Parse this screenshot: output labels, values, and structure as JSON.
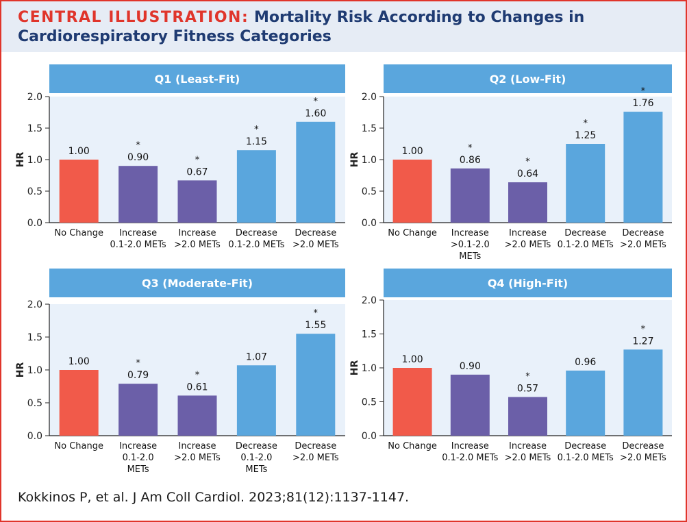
{
  "header": {
    "title_lead": "CENTRAL ILLUSTRATION:",
    "title_rest": "Mortality Risk According to Changes in Cardiorespiratory Fitness Categories"
  },
  "citation": "Kokkinos P, et al. J Am Coll Cardiol. 2023;81(12):1137-1147.",
  "colors": {
    "no_change": "#f15a4a",
    "increase": "#6b5fa8",
    "decrease": "#5aa6dd",
    "header_bar": "#5aa6dd",
    "plot_bg": "#e9f1fa",
    "title_lead": "#e0352b",
    "title": "#1f3b72"
  },
  "chart_data": [
    {
      "type": "bar",
      "title": "Q1 (Least-Fit)",
      "ylabel": "HR",
      "ylim": [
        0,
        2.0
      ],
      "yticks": [
        "0.0",
        "0.5",
        "1.0",
        "1.5",
        "2.0"
      ],
      "categories": [
        [
          "No Change"
        ],
        [
          "Increase",
          "0.1-2.0 METs"
        ],
        [
          "Increase",
          ">2.0 METs"
        ],
        [
          "Decrease",
          "0.1-2.0 METs"
        ],
        [
          "Decrease",
          ">2.0 METs"
        ]
      ],
      "values": [
        1.0,
        0.9,
        0.67,
        1.15,
        1.6
      ],
      "labels": [
        "1.00",
        "0.90",
        "0.67",
        "1.15",
        "1.60"
      ],
      "significant": [
        false,
        true,
        true,
        true,
        true
      ],
      "groups": [
        "no_change",
        "increase",
        "increase",
        "decrease",
        "decrease"
      ]
    },
    {
      "type": "bar",
      "title": "Q2 (Low-Fit)",
      "ylabel": "HR",
      "ylim": [
        0,
        2.0
      ],
      "yticks": [
        "0.0",
        "0.5",
        "1.0",
        "1.5",
        "2.0"
      ],
      "categories": [
        [
          "No Change"
        ],
        [
          "Increase",
          ">0.1-2.0",
          "METs"
        ],
        [
          "Increase",
          ">2.0 METs"
        ],
        [
          "Decrease",
          "0.1-2.0 METs"
        ],
        [
          "Decrease",
          ">2.0 METs"
        ]
      ],
      "values": [
        1.0,
        0.86,
        0.64,
        1.25,
        1.76
      ],
      "labels": [
        "1.00",
        "0.86",
        "0.64",
        "1.25",
        "1.76"
      ],
      "significant": [
        false,
        true,
        true,
        true,
        true
      ],
      "groups": [
        "no_change",
        "increase",
        "increase",
        "decrease",
        "decrease"
      ]
    },
    {
      "type": "bar",
      "title": "Q3 (Moderate-Fit)",
      "ylabel": "HR",
      "ylim": [
        0,
        2.0
      ],
      "yticks": [
        "0.0",
        "0.5",
        "1.0",
        "1.5",
        "2.0"
      ],
      "categories": [
        [
          "No Change"
        ],
        [
          "Increase",
          "0.1-2.0",
          "METs"
        ],
        [
          "Increase",
          ">2.0 METs"
        ],
        [
          "Decrease",
          "0.1-2.0",
          "METs"
        ],
        [
          "Decrease",
          ">2.0 METs"
        ]
      ],
      "values": [
        1.0,
        0.79,
        0.61,
        1.07,
        1.55
      ],
      "labels": [
        "1.00",
        "0.79",
        "0.61",
        "1.07",
        "1.55"
      ],
      "significant": [
        false,
        true,
        true,
        false,
        true
      ],
      "groups": [
        "no_change",
        "increase",
        "increase",
        "decrease",
        "decrease"
      ]
    },
    {
      "type": "bar",
      "title": "Q4 (High-Fit)",
      "ylabel": "HR",
      "ylim": [
        0,
        2.0
      ],
      "yticks": [
        "0.0",
        "0.5",
        "1.0",
        "1.5",
        "2.0"
      ],
      "categories": [
        [
          "No Change"
        ],
        [
          "Increase",
          "0.1-2.0 METs"
        ],
        [
          "Increase",
          ">2.0 METs"
        ],
        [
          "Decrease",
          "0.1-2.0 METs"
        ],
        [
          "Decrease",
          ">2.0 METs"
        ]
      ],
      "values": [
        1.0,
        0.9,
        0.57,
        0.96,
        1.27
      ],
      "labels": [
        "1.00",
        "0.90",
        "0.57",
        "0.96",
        "1.27"
      ],
      "significant": [
        false,
        false,
        true,
        false,
        true
      ],
      "groups": [
        "no_change",
        "increase",
        "increase",
        "decrease",
        "decrease"
      ]
    }
  ]
}
